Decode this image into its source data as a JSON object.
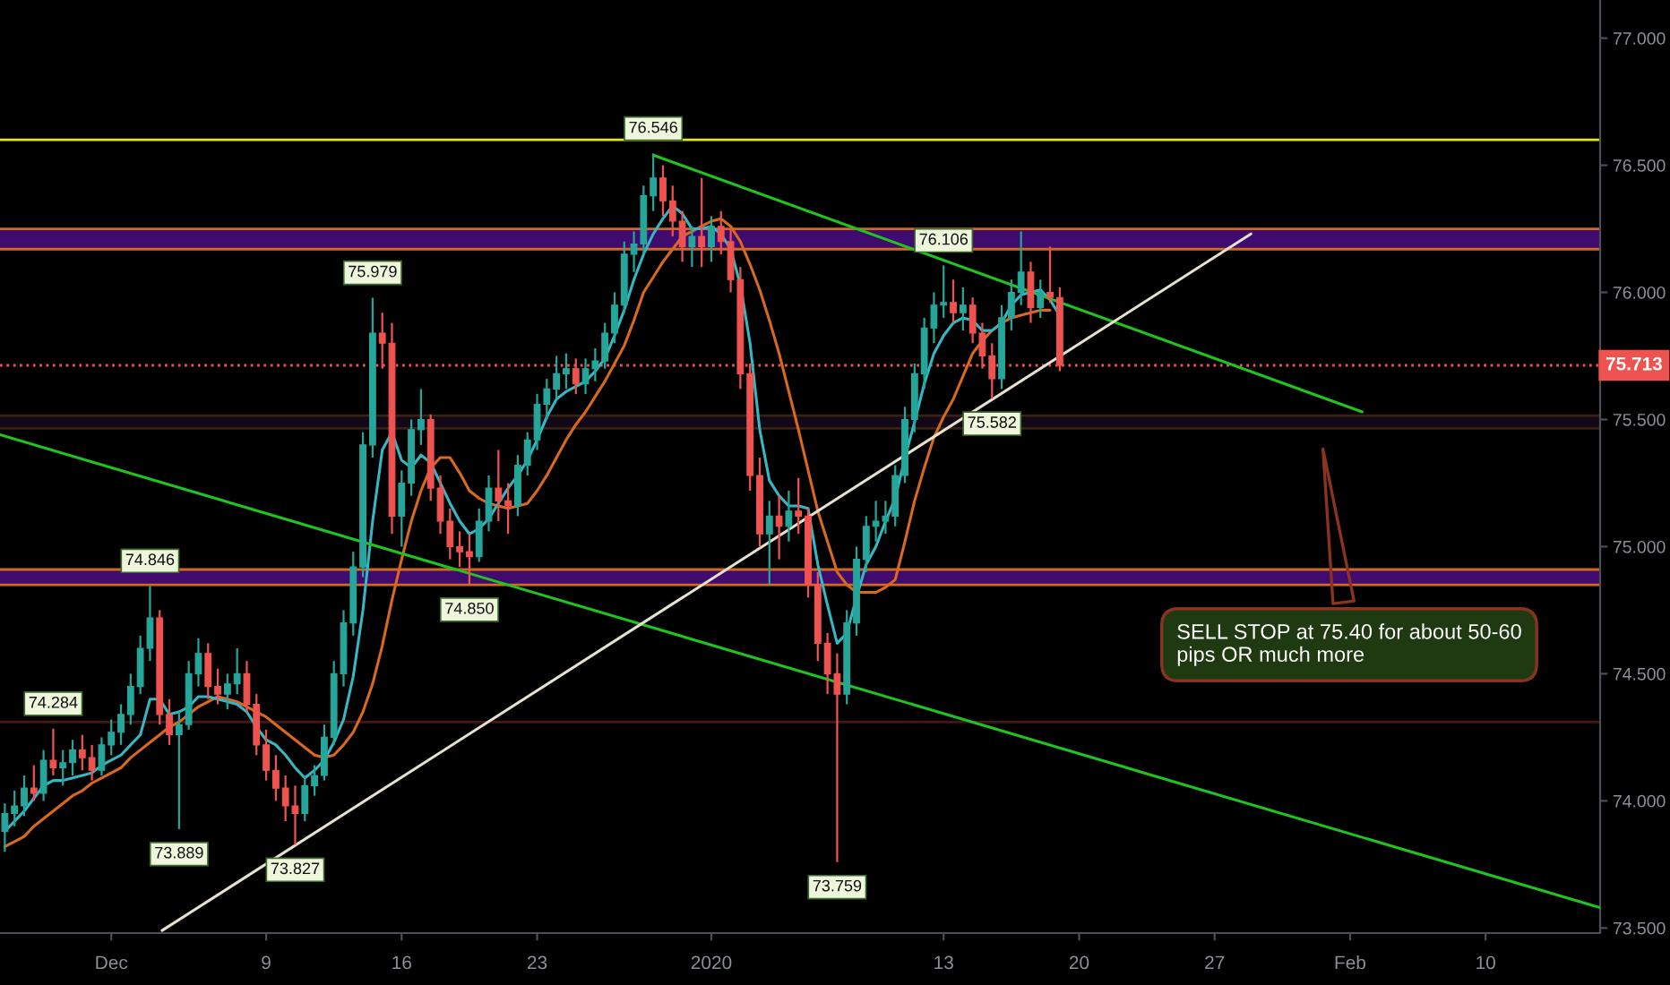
{
  "chart_data": {
    "type": "candlestick",
    "x": [
      "2019-11-25T12:00",
      "2019-11-26T00:00",
      "2019-11-26T12:00",
      "2019-11-27T00:00",
      "2019-11-27T12:00",
      "2019-11-28T00:00",
      "2019-11-28T12:00",
      "2019-11-29T00:00",
      "2019-11-29T12:00",
      "2019-11-30T00:00",
      "2019-11-30T12:00",
      "2019-12-01T00:00",
      "2019-12-01T12:00",
      "2019-12-02T00:00",
      "2019-12-02T12:00",
      "2019-12-03T00:00",
      "2019-12-03T12:00",
      "2019-12-04T00:00",
      "2019-12-04T12:00",
      "2019-12-05T00:00",
      "2019-12-05T12:00",
      "2019-12-06T00:00",
      "2019-12-06T12:00",
      "2019-12-07T00:00",
      "2019-12-07T12:00",
      "2019-12-08T00:00",
      "2019-12-08T12:00",
      "2019-12-09T00:00",
      "2019-12-09T12:00",
      "2019-12-10T00:00",
      "2019-12-10T12:00",
      "2019-12-11T00:00",
      "2019-12-11T12:00",
      "2019-12-12T00:00",
      "2019-12-12T12:00",
      "2019-12-13T00:00",
      "2019-12-13T12:00",
      "2019-12-14T00:00",
      "2019-12-14T12:00",
      "2019-12-15T00:00",
      "2019-12-15T12:00",
      "2019-12-16T00:00",
      "2019-12-16T12:00",
      "2019-12-17T00:00",
      "2019-12-17T12:00",
      "2019-12-18T00:00",
      "2019-12-18T12:00",
      "2019-12-19T00:00",
      "2019-12-19T12:00",
      "2019-12-20T00:00",
      "2019-12-20T12:00",
      "2019-12-21T00:00",
      "2019-12-21T12:00",
      "2019-12-22T00:00",
      "2019-12-22T12:00",
      "2019-12-23T00:00",
      "2019-12-23T12:00",
      "2019-12-24T00:00",
      "2019-12-24T12:00",
      "2019-12-25T00:00",
      "2019-12-25T12:00",
      "2019-12-26T00:00",
      "2019-12-26T12:00",
      "2019-12-27T00:00",
      "2019-12-27T12:00",
      "2019-12-28T00:00",
      "2019-12-28T12:00",
      "2019-12-29T00:00",
      "2019-12-29T12:00",
      "2019-12-30T00:00",
      "2019-12-30T12:00",
      "2019-12-31T00:00",
      "2019-12-31T12:00",
      "2020-01-01T00:00",
      "2020-01-01T12:00",
      "2020-01-02T00:00",
      "2020-01-02T12:00",
      "2020-01-03T00:00",
      "2020-01-03T12:00",
      "2020-01-04T00:00",
      "2020-01-04T12:00",
      "2020-01-05T00:00",
      "2020-01-05T12:00",
      "2020-01-06T00:00",
      "2020-01-06T12:00",
      "2020-01-07T00:00",
      "2020-01-07T12:00",
      "2020-01-08T00:00",
      "2020-01-08T12:00",
      "2020-01-09T00:00",
      "2020-01-09T12:00",
      "2020-01-10T00:00",
      "2020-01-10T12:00",
      "2020-01-11T00:00",
      "2020-01-11T12:00",
      "2020-01-12T00:00",
      "2020-01-12T12:00",
      "2020-01-13T00:00",
      "2020-01-13T12:00",
      "2020-01-14T00:00",
      "2020-01-14T12:00",
      "2020-01-15T00:00",
      "2020-01-15T12:00",
      "2020-01-16T00:00",
      "2020-01-16T12:00",
      "2020-01-17T00:00",
      "2020-01-17T12:00",
      "2020-01-18T00:00",
      "2020-01-18T12:00",
      "2020-01-19T00:00"
    ],
    "ohlc": [
      [
        73.88,
        73.99,
        73.8,
        73.95
      ],
      [
        73.95,
        74.04,
        73.9,
        73.98
      ],
      [
        73.98,
        74.1,
        73.94,
        74.05
      ],
      [
        74.05,
        74.14,
        74.0,
        74.03
      ],
      [
        74.03,
        74.2,
        74.0,
        74.16
      ],
      [
        74.16,
        74.284,
        74.1,
        74.13
      ],
      [
        74.13,
        74.2,
        74.06,
        74.15
      ],
      [
        74.15,
        74.24,
        74.1,
        74.2
      ],
      [
        74.2,
        74.26,
        74.12,
        74.17
      ],
      [
        74.17,
        74.22,
        74.08,
        74.12
      ],
      [
        74.12,
        74.25,
        74.1,
        74.22
      ],
      [
        74.22,
        74.32,
        74.18,
        74.27
      ],
      [
        74.27,
        74.38,
        74.22,
        74.34
      ],
      [
        74.34,
        74.5,
        74.3,
        74.45
      ],
      [
        74.45,
        74.65,
        74.42,
        74.6
      ],
      [
        74.6,
        74.846,
        74.55,
        74.72
      ],
      [
        74.72,
        74.75,
        74.3,
        74.34
      ],
      [
        74.34,
        74.4,
        74.22,
        74.26
      ],
      [
        74.26,
        74.35,
        73.889,
        74.3
      ],
      [
        74.3,
        74.55,
        74.28,
        74.5
      ],
      [
        74.5,
        74.64,
        74.45,
        74.58
      ],
      [
        74.58,
        74.62,
        74.4,
        74.45
      ],
      [
        74.45,
        74.52,
        74.38,
        74.42
      ],
      [
        74.42,
        74.5,
        74.36,
        74.46
      ],
      [
        74.46,
        74.6,
        74.42,
        74.5
      ],
      [
        74.5,
        74.55,
        74.35,
        74.38
      ],
      [
        74.38,
        74.42,
        74.18,
        74.22
      ],
      [
        74.22,
        74.28,
        74.08,
        74.12
      ],
      [
        74.12,
        74.18,
        74.0,
        74.05
      ],
      [
        74.05,
        74.1,
        73.92,
        73.98
      ],
      [
        73.98,
        74.06,
        73.827,
        73.95
      ],
      [
        73.95,
        74.1,
        73.92,
        74.06
      ],
      [
        74.06,
        74.14,
        74.02,
        74.1
      ],
      [
        74.1,
        74.3,
        74.08,
        74.25
      ],
      [
        74.25,
        74.55,
        74.22,
        74.5
      ],
      [
        74.5,
        74.75,
        74.45,
        74.7
      ],
      [
        74.7,
        74.98,
        74.65,
        74.92
      ],
      [
        74.92,
        75.45,
        74.88,
        75.4
      ],
      [
        75.4,
        75.979,
        75.35,
        75.84
      ],
      [
        75.84,
        75.92,
        75.7,
        75.8
      ],
      [
        75.8,
        75.88,
        75.05,
        75.12
      ],
      [
        75.12,
        75.3,
        75.0,
        75.25
      ],
      [
        75.25,
        75.5,
        75.2,
        75.46
      ],
      [
        75.46,
        75.62,
        75.4,
        75.5
      ],
      [
        75.5,
        75.52,
        75.18,
        75.23
      ],
      [
        75.23,
        75.28,
        75.05,
        75.1
      ],
      [
        75.1,
        75.15,
        74.95,
        75.0
      ],
      [
        75.0,
        75.06,
        74.92,
        74.98
      ],
      [
        74.98,
        75.05,
        74.85,
        74.96
      ],
      [
        74.96,
        75.15,
        74.94,
        75.1
      ],
      [
        75.1,
        75.28,
        75.06,
        75.23
      ],
      [
        75.23,
        75.38,
        75.1,
        75.18
      ],
      [
        75.18,
        75.25,
        75.05,
        75.16
      ],
      [
        75.16,
        75.36,
        75.12,
        75.32
      ],
      [
        75.32,
        75.45,
        75.28,
        75.42
      ],
      [
        75.42,
        75.6,
        75.38,
        75.56
      ],
      [
        75.56,
        75.66,
        75.5,
        75.62
      ],
      [
        75.62,
        75.75,
        75.58,
        75.68
      ],
      [
        75.68,
        75.76,
        75.62,
        75.7
      ],
      [
        75.7,
        75.74,
        75.6,
        75.64
      ],
      [
        75.64,
        75.74,
        75.6,
        75.7
      ],
      [
        75.7,
        75.78,
        75.65,
        75.73
      ],
      [
        75.73,
        75.88,
        75.7,
        75.84
      ],
      [
        75.84,
        76.0,
        75.8,
        75.95
      ],
      [
        75.95,
        76.2,
        75.92,
        76.15
      ],
      [
        76.15,
        76.24,
        76.08,
        76.19
      ],
      [
        76.19,
        76.42,
        76.15,
        76.38
      ],
      [
        76.38,
        76.546,
        76.32,
        76.45
      ],
      [
        76.45,
        76.5,
        76.3,
        76.36
      ],
      [
        76.36,
        76.42,
        76.22,
        76.28
      ],
      [
        76.28,
        76.32,
        76.12,
        76.18
      ],
      [
        76.18,
        76.26,
        76.1,
        76.22
      ],
      [
        76.22,
        76.45,
        76.1,
        76.18
      ],
      [
        76.18,
        76.3,
        76.12,
        76.26
      ],
      [
        76.26,
        76.32,
        76.15,
        76.2
      ],
      [
        76.2,
        76.25,
        76.0,
        76.05
      ],
      [
        76.05,
        76.1,
        75.62,
        75.68
      ],
      [
        75.68,
        75.72,
        75.22,
        75.28
      ],
      [
        75.28,
        75.35,
        75.0,
        75.05
      ],
      [
        75.05,
        75.18,
        74.85,
        75.12
      ],
      [
        75.12,
        75.2,
        74.95,
        75.08
      ],
      [
        75.08,
        75.22,
        75.02,
        75.14
      ],
      [
        75.14,
        75.27,
        75.05,
        75.12
      ],
      [
        75.12,
        75.15,
        74.8,
        74.85
      ],
      [
        74.85,
        74.9,
        74.55,
        74.62
      ],
      [
        74.62,
        74.66,
        74.42,
        74.5
      ],
      [
        74.5,
        74.58,
        73.759,
        74.42
      ],
      [
        74.42,
        74.75,
        74.38,
        74.7
      ],
      [
        74.7,
        75.0,
        74.65,
        74.95
      ],
      [
        74.95,
        75.12,
        74.9,
        75.08
      ],
      [
        75.08,
        75.18,
        75.02,
        75.1
      ],
      [
        75.1,
        75.18,
        75.05,
        75.12
      ],
      [
        75.12,
        75.32,
        75.08,
        75.28
      ],
      [
        75.28,
        75.55,
        75.25,
        75.5
      ],
      [
        75.5,
        75.72,
        75.45,
        75.68
      ],
      [
        75.68,
        75.9,
        75.62,
        75.86
      ],
      [
        75.86,
        76.0,
        75.8,
        75.95
      ],
      [
        75.95,
        76.106,
        75.9,
        75.96
      ],
      [
        75.96,
        76.05,
        75.88,
        75.92
      ],
      [
        75.92,
        76.02,
        75.85,
        75.95
      ],
      [
        75.95,
        75.98,
        75.8,
        75.84
      ],
      [
        75.84,
        75.88,
        75.7,
        75.75
      ],
      [
        75.75,
        75.8,
        75.582,
        75.66
      ],
      [
        75.66,
        75.95,
        75.62,
        75.9
      ],
      [
        75.9,
        76.05,
        75.85,
        76.0
      ],
      [
        76.0,
        76.24,
        75.95,
        76.08
      ],
      [
        76.08,
        76.12,
        75.88,
        75.94
      ],
      [
        75.94,
        76.05,
        75.9,
        76.0
      ],
      [
        76.0,
        76.18,
        75.96,
        75.98
      ],
      [
        75.98,
        76.02,
        75.69,
        75.713
      ]
    ],
    "colors": [
      "#26a69a",
      "#26a69a",
      "#26a69a",
      "#ef5350",
      "#26a69a",
      "#ef5350",
      "#26a69a",
      "#26a69a",
      "#ef5350",
      "#ef5350",
      "#26a69a",
      "#26a69a",
      "#26a69a",
      "#26a69a",
      "#26a69a",
      "#26a69a",
      "#ef5350",
      "#ef5350",
      "#26a69a",
      "#26a69a",
      "#26a69a",
      "#ef5350",
      "#ef5350",
      "#26a69a",
      "#26a69a",
      "#ef5350",
      "#ef5350",
      "#ef5350",
      "#ef5350",
      "#ef5350",
      "#ef5350",
      "#26a69a",
      "#26a69a",
      "#26a69a",
      "#26a69a",
      "#26a69a",
      "#26a69a",
      "#26a69a",
      "#26a69a",
      "#ef5350",
      "#ef5350",
      "#26a69a",
      "#26a69a",
      "#26a69a",
      "#ef5350",
      "#ef5350",
      "#ef5350",
      "#ef5350",
      "#ef5350",
      "#26a69a",
      "#26a69a",
      "#ef5350",
      "#ef5350",
      "#26a69a",
      "#26a69a",
      "#26a69a",
      "#26a69a",
      "#26a69a",
      "#26a69a",
      "#ef5350",
      "#26a69a",
      "#26a69a",
      "#26a69a",
      "#26a69a",
      "#26a69a",
      "#26a69a",
      "#26a69a",
      "#26a69a",
      "#ef5350",
      "#ef5350",
      "#ef5350",
      "#26a69a",
      "#ef5350",
      "#26a69a",
      "#ef5350",
      "#ef5350",
      "#ef5350",
      "#ef5350",
      "#ef5350",
      "#26a69a",
      "#ef5350",
      "#26a69a",
      "#ef5350",
      "#ef5350",
      "#ef5350",
      "#ef5350",
      "#ef5350",
      "#26a69a",
      "#26a69a",
      "#26a69a",
      "#26a69a",
      "#26a69a",
      "#26a69a",
      "#26a69a",
      "#26a69a",
      "#26a69a",
      "#26a69a",
      "#26a69a",
      "#ef5350",
      "#26a69a",
      "#ef5350",
      "#ef5350",
      "#ef5350",
      "#26a69a",
      "#26a69a",
      "#26a69a",
      "#ef5350",
      "#26a69a",
      "#ef5350",
      "#ef5350"
    ],
    "series": [
      {
        "type": "line",
        "color": "#d9691c",
        "values": [
          73.82,
          73.84,
          73.86,
          73.9,
          73.93,
          73.96,
          73.99,
          74.02,
          74.04,
          74.07,
          74.09,
          74.11,
          74.13,
          74.17,
          74.2,
          74.23,
          74.26,
          74.29,
          74.31,
          74.34,
          74.37,
          74.39,
          74.41,
          74.4,
          74.39,
          74.37,
          74.35,
          74.33,
          74.3,
          74.27,
          74.24,
          74.21,
          74.18,
          74.17,
          74.18,
          74.22,
          74.27,
          74.35,
          74.46,
          74.61,
          74.79,
          74.95,
          75.1,
          75.22,
          75.31,
          75.35,
          75.35,
          75.29,
          75.22,
          75.19,
          75.17,
          75.16,
          75.15,
          75.16,
          75.17,
          75.22,
          75.28,
          75.35,
          75.42,
          75.48,
          75.53,
          75.59,
          75.65,
          75.72,
          75.79,
          75.89,
          76.0,
          76.06,
          76.12,
          76.17,
          76.22,
          76.24,
          76.26,
          76.28,
          76.29,
          76.26,
          76.2,
          76.11,
          76.01,
          75.89,
          75.76,
          75.61,
          75.46,
          75.3,
          75.14,
          75.02,
          74.9,
          74.85,
          74.82,
          74.82,
          74.82,
          74.84,
          74.87,
          75.02,
          75.18,
          75.31,
          75.43,
          75.51,
          75.58,
          75.67,
          75.76,
          75.81,
          75.85,
          75.88,
          75.9,
          75.91,
          75.92,
          75.93,
          75.93,
          null
        ]
      },
      {
        "type": "line",
        "color": "#35b8c4",
        "values": [
          73.88,
          73.92,
          73.96,
          74.01,
          74.06,
          74.08,
          74.08,
          74.09,
          74.1,
          74.11,
          74.14,
          74.16,
          74.18,
          74.22,
          74.26,
          74.4,
          74.4,
          74.34,
          74.35,
          74.37,
          74.41,
          74.41,
          74.4,
          74.39,
          74.38,
          74.35,
          74.29,
          74.24,
          74.22,
          74.18,
          74.13,
          74.09,
          74.12,
          74.16,
          74.23,
          74.32,
          74.49,
          74.75,
          75.1,
          75.38,
          75.45,
          75.34,
          75.31,
          75.36,
          75.33,
          75.25,
          75.17,
          75.1,
          75.05,
          75.07,
          75.11,
          75.17,
          75.23,
          75.28,
          75.34,
          75.42,
          75.51,
          75.58,
          75.61,
          75.63,
          75.65,
          75.69,
          75.74,
          75.83,
          75.93,
          76.05,
          76.15,
          76.23,
          76.29,
          76.34,
          76.31,
          76.25,
          76.25,
          76.26,
          76.23,
          76.17,
          76.03,
          75.8,
          75.46,
          75.26,
          75.2,
          75.16,
          75.16,
          75.15,
          74.93,
          74.77,
          74.62,
          74.66,
          74.8,
          74.93,
          75.0,
          75.1,
          75.19,
          75.35,
          75.49,
          75.64,
          75.76,
          75.83,
          75.88,
          75.9,
          75.89,
          75.85,
          75.85,
          75.88,
          75.95,
          75.99,
          76.0,
          76.01,
          75.97,
          75.91
        ]
      },
      {
        "type": "line",
        "color": "#1fc41f",
        "x": [
          "2019-12-29T00:00",
          "2020-02-03T15:00"
        ],
        "values": [
          76.54,
          75.53
        ]
      },
      {
        "type": "line",
        "color": "#1fc41f",
        "x": [
          "2019-11-25T06:00",
          "2020-02-15T22:00"
        ],
        "values": [
          75.44,
          73.58
        ]
      },
      {
        "type": "line",
        "color": "#e6e2cf",
        "x": [
          "2019-12-03T15:00",
          "2020-01-28T21:00"
        ],
        "values": [
          73.49,
          76.23
        ]
      }
    ],
    "xlim": [
      "2019-11-25T06:00",
      "2020-02-15T22:00"
    ],
    "ylim": [
      73.48,
      77.15
    ],
    "xticks": [
      {
        "value": "2019-12-01",
        "label": "Dec"
      },
      {
        "value": "2019-12-09",
        "label": "9"
      },
      {
        "value": "2019-12-16",
        "label": "16"
      },
      {
        "value": "2019-12-23",
        "label": "23"
      },
      {
        "value": "2020-01-01",
        "label": "2020"
      },
      {
        "value": "2020-01-13",
        "label": "13"
      },
      {
        "value": "2020-01-20",
        "label": "20"
      },
      {
        "value": "2020-01-27",
        "label": "27"
      },
      {
        "value": "2020-02-03",
        "label": "Feb"
      },
      {
        "value": "2020-02-10",
        "label": "10"
      }
    ],
    "yticks": [
      {
        "value": 73.5,
        "label": "73.500"
      },
      {
        "value": 74.0,
        "label": "74.000"
      },
      {
        "value": 74.5,
        "label": "74.500"
      },
      {
        "value": 75.0,
        "label": "75.000"
      },
      {
        "value": 75.5,
        "label": "75.500"
      },
      {
        "value": 76.0,
        "label": "76.000"
      },
      {
        "value": 76.5,
        "label": "76.500"
      },
      {
        "value": 77.0,
        "label": "77.000"
      }
    ],
    "bands": [
      {
        "axis": "y",
        "from": 76.17,
        "to": 76.25,
        "color": "#3f0b6e"
      },
      {
        "axis": "y",
        "from": 75.465,
        "to": 75.515,
        "color": "#120818"
      },
      {
        "axis": "y",
        "from": 74.85,
        "to": 74.91,
        "color": "#3f0b6e"
      }
    ],
    "ref_lines": [
      {
        "axis": "y",
        "value": 76.6,
        "color": "#e5e51a"
      },
      {
        "axis": "y",
        "value": 76.25,
        "color": "#d2691e"
      },
      {
        "axis": "y",
        "value": 76.17,
        "color": "#d2691e"
      },
      {
        "axis": "y",
        "value": 75.713,
        "label": "75.713",
        "color": "#ef5350",
        "line_style": "dotted"
      },
      {
        "axis": "y",
        "value": 75.515,
        "color": "#3a2212"
      },
      {
        "axis": "y",
        "value": 75.465,
        "color": "#3a2212"
      },
      {
        "axis": "y",
        "value": 74.91,
        "color": "#d2691e"
      },
      {
        "axis": "y",
        "value": 74.85,
        "color": "#d2691e"
      },
      {
        "axis": "y",
        "value": 74.31,
        "color": "#4a1515"
      }
    ],
    "annotations": [
      {
        "text": "74.284",
        "x": "2019-11-28T00:00",
        "y": 74.284
      },
      {
        "text": "74.846",
        "x": "2019-12-03T00:00",
        "y": 74.846
      },
      {
        "text": "73.889",
        "x": "2019-12-04T12:00",
        "y": 73.889
      },
      {
        "text": "73.827",
        "x": "2019-12-10T12:00",
        "y": 73.827
      },
      {
        "text": "75.979",
        "x": "2019-12-14T12:00",
        "y": 75.979
      },
      {
        "text": "74.850",
        "x": "2019-12-19T12:00",
        "y": 74.85
      },
      {
        "text": "76.546",
        "x": "2019-12-29T00:00",
        "y": 76.546
      },
      {
        "text": "73.759",
        "x": "2020-01-07T12:00",
        "y": 73.759
      },
      {
        "text": "76.106",
        "x": "2020-01-13T00:00",
        "y": 76.106
      },
      {
        "text": "75.582",
        "x": "2020-01-15T12:00",
        "y": 75.582
      },
      "SELL STOP at 75.40 for about 50-60\npips OR much more"
    ]
  }
}
